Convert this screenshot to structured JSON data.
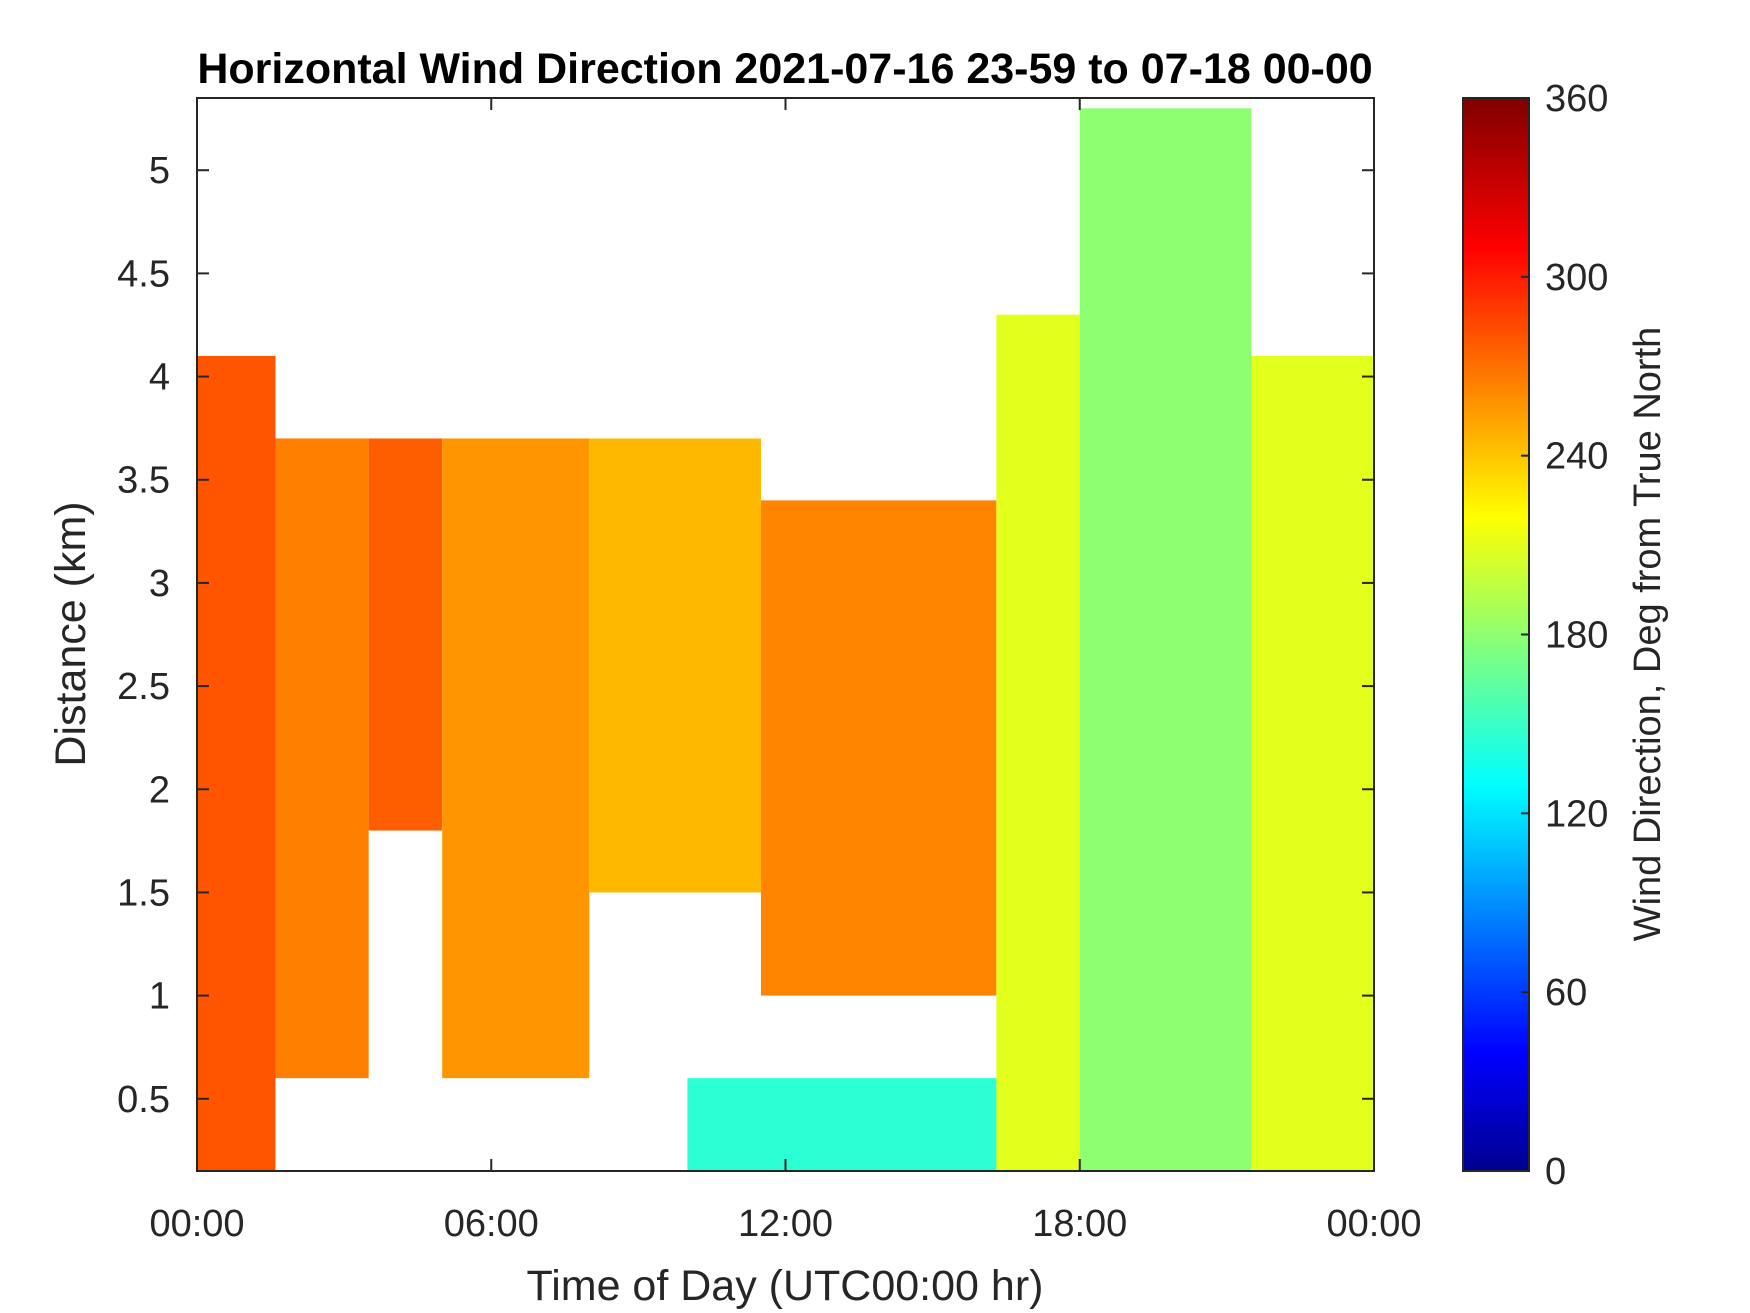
{
  "chart_data": {
    "type": "heatmap",
    "title": "Horizontal Wind Direction 2021-07-16 23-59 to 07-18 00-00",
    "xlabel": "Time of Day (UTC00:00 hr)",
    "ylabel": "Distance (km)",
    "x_ticks": [
      "00:00",
      "06:00",
      "12:00",
      "18:00",
      "00:00"
    ],
    "x_range_hours": [
      0,
      24
    ],
    "y_ticks": [
      "0.5",
      "1",
      "1.5",
      "2",
      "2.5",
      "3",
      "3.5",
      "4",
      "4.5",
      "5"
    ],
    "y_tick_values": [
      0.5,
      1,
      1.5,
      2,
      2.5,
      3,
      3.5,
      4,
      4.5,
      5
    ],
    "ylim": [
      0.15,
      5.35
    ],
    "colorbar": {
      "label": "Wind Direction, Deg from True North",
      "ticks": [
        "0",
        "60",
        "120",
        "180",
        "240",
        "300",
        "360"
      ],
      "tick_values": [
        0,
        60,
        120,
        180,
        240,
        300,
        360
      ],
      "range": [
        0,
        360
      ],
      "colormap": "jet"
    },
    "regions": [
      {
        "x": [
          0,
          1.6
        ],
        "y": [
          0.15,
          4.1
        ],
        "value": 285
      },
      {
        "x": [
          1.6,
          3.5
        ],
        "y": [
          0.6,
          3.7
        ],
        "value": 270
      },
      {
        "x": [
          3.5,
          5.0
        ],
        "y": [
          1.8,
          3.7
        ],
        "value": 282
      },
      {
        "x": [
          5.0,
          8.0
        ],
        "y": [
          0.6,
          3.7
        ],
        "value": 262
      },
      {
        "x": [
          8.0,
          11.5
        ],
        "y": [
          1.5,
          3.7
        ],
        "value": 250
      },
      {
        "x": [
          11.5,
          16.3
        ],
        "y": [
          1.0,
          3.4
        ],
        "value": 268
      },
      {
        "x": [
          10.0,
          16.3
        ],
        "y": [
          0.15,
          0.6
        ],
        "value": 150
      },
      {
        "x": [
          16.3,
          18.0
        ],
        "y": [
          0.15,
          4.3
        ],
        "value": 215
      },
      {
        "x": [
          18.0,
          21.5
        ],
        "y": [
          0.15,
          5.3
        ],
        "value": 185
      },
      {
        "x": [
          21.5,
          24.0
        ],
        "y": [
          0.15,
          4.1
        ],
        "value": 215
      }
    ],
    "grid": false
  }
}
